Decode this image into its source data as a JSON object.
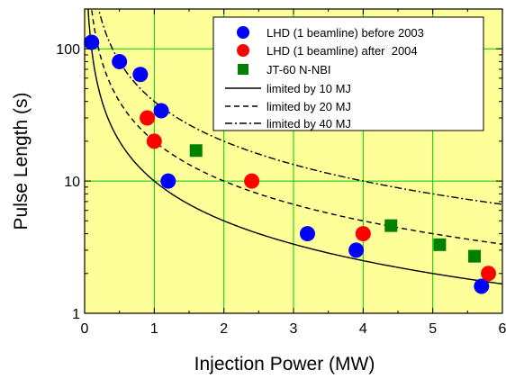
{
  "chart_data": {
    "type": "scatter",
    "title": "",
    "xlabel": "Injection Power (MW)",
    "ylabel": "Pulse Length (s)",
    "xlim": [
      0,
      6
    ],
    "ylim": [
      1,
      200
    ],
    "yscale": "log",
    "x_ticks": [
      0,
      1,
      2,
      3,
      4,
      5,
      6
    ],
    "x_tick_labels": [
      "0",
      "1",
      "2",
      "3",
      "4",
      "5",
      "6"
    ],
    "y_ticks": [
      1,
      10,
      100
    ],
    "y_tick_labels": [
      "1",
      "10",
      "100"
    ],
    "grid": true,
    "legend_position": "top-right",
    "colors": {
      "background": "#ffff99",
      "grid": "#00cc00",
      "before2003": "#0000ff",
      "after2004": "#ff0000",
      "jt60": "#008000",
      "curves": "#000000"
    },
    "series": [
      {
        "name": "LHD (1 beamline) before 2003",
        "marker": "circle",
        "points": [
          [
            0.1,
            112
          ],
          [
            0.5,
            80
          ],
          [
            0.8,
            64
          ],
          [
            1.1,
            34
          ],
          [
            1.2,
            10
          ],
          [
            3.2,
            4
          ],
          [
            3.9,
            3
          ],
          [
            5.7,
            1.6
          ]
        ]
      },
      {
        "name": "LHD (1 beamline) after  2004",
        "marker": "circle",
        "points": [
          [
            0.9,
            30
          ],
          [
            1.0,
            20
          ],
          [
            2.4,
            10
          ],
          [
            4.0,
            4
          ],
          [
            5.8,
            2
          ]
        ]
      },
      {
        "name": "JT-60 N-NBI",
        "marker": "square",
        "points": [
          [
            1.6,
            17
          ],
          [
            4.4,
            4.6
          ],
          [
            5.1,
            3.3
          ],
          [
            5.6,
            2.7
          ]
        ]
      }
    ],
    "curves": [
      {
        "name": "limited by 10 MJ",
        "energy_MJ": 10,
        "style": "solid"
      },
      {
        "name": "limited by 20 MJ",
        "energy_MJ": 20,
        "style": "dashed"
      },
      {
        "name": "limited by 40 MJ",
        "energy_MJ": 40,
        "style": "dashdot"
      }
    ]
  }
}
